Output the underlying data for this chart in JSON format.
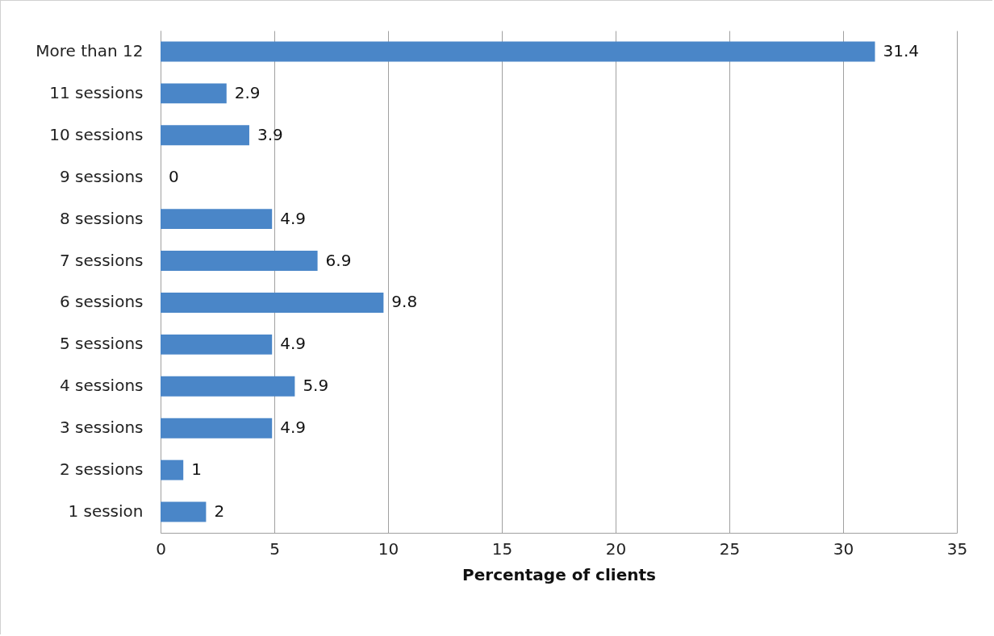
{
  "chart_data": {
    "type": "bar",
    "orientation": "horizontal",
    "xlabel": "Percentage of clients",
    "categories": [
      "More than 12",
      "11 sessions",
      "10 sessions",
      "9 sessions",
      "8 sessions",
      "7 sessions",
      "6 sessions",
      "5 sessions",
      "4 sessions",
      "3 sessions",
      "2 sessions",
      "1 session"
    ],
    "values": [
      31.4,
      2.9,
      3.9,
      0,
      4.9,
      6.9,
      9.8,
      4.9,
      5.9,
      4.9,
      1,
      2
    ],
    "color": "#4a86c8",
    "xlim": [
      0,
      35
    ],
    "xticks": [
      0,
      5,
      10,
      15,
      20,
      25,
      30,
      35
    ],
    "grid": "x",
    "data_labels": true
  }
}
